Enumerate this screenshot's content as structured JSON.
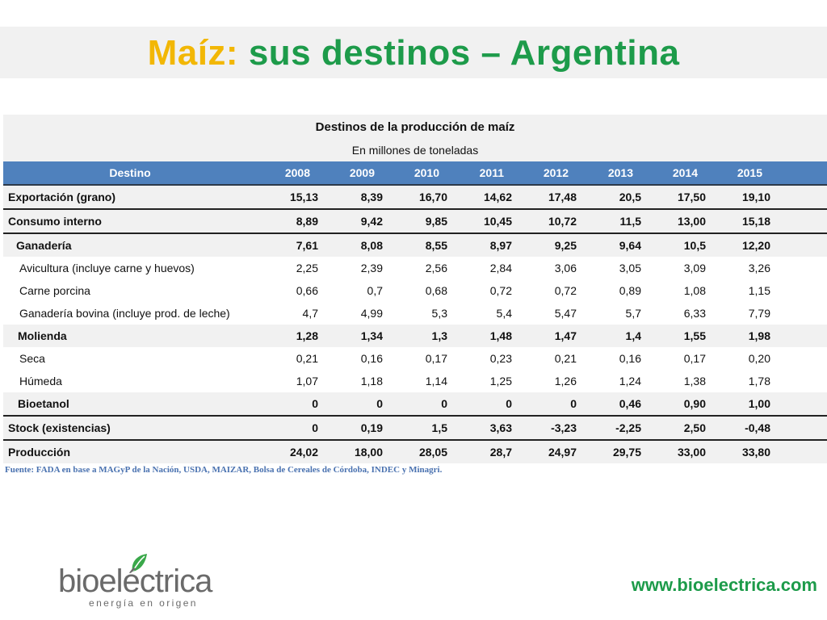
{
  "slide": {
    "title_part1": "Maíz:",
    "title_part2": "sus destinos – Argentina",
    "source": "Fuente: FADA en base a MAGyP de la Nación, USDA, MAIZAR, Bolsa de Cereales de Córdoba, INDEC y Minagri.",
    "logo_word": "bioeléctrica",
    "logo_tagline": "energía en origen",
    "website": "www.bioelectrica.com",
    "colors": {
      "title_yellow": "#f2b705",
      "title_green": "#1d9b4a",
      "header_blue": "#4f81bd",
      "source_blue": "#4a72b0"
    }
  },
  "table": {
    "caption": "Destinos de la producción de maíz",
    "subcaption": "En millones de toneladas",
    "headers": [
      "Destino",
      "2008",
      "2009",
      "2010",
      "2011",
      "2012",
      "2013",
      "2014",
      "2015"
    ],
    "rows": [
      {
        "label": "Exportación (grano)",
        "values": [
          "15,13",
          "8,39",
          "16,70",
          "14,62",
          "17,48",
          "20,5",
          "17,50",
          "19,10"
        ]
      },
      {
        "label": "Consumo interno",
        "values": [
          "8,89",
          "9,42",
          "9,85",
          "10,45",
          "10,72",
          "11,5",
          "13,00",
          "15,18"
        ]
      },
      {
        "label": "Ganadería",
        "values": [
          "7,61",
          "8,08",
          "8,55",
          "8,97",
          "9,25",
          "9,64",
          "10,5",
          "12,20"
        ]
      },
      {
        "label": "Avicultura (incluye carne y huevos)",
        "values": [
          "2,25",
          "2,39",
          "2,56",
          "2,84",
          "3,06",
          "3,05",
          "3,09",
          "3,26"
        ]
      },
      {
        "label": "Carne porcina",
        "values": [
          "0,66",
          "0,7",
          "0,68",
          "0,72",
          "0,72",
          "0,89",
          "1,08",
          "1,15"
        ]
      },
      {
        "label": "Ganadería bovina (incluye prod. de leche)",
        "values": [
          "4,7",
          "4,99",
          "5,3",
          "5,4",
          "5,47",
          "5,7",
          "6,33",
          "7,79"
        ]
      },
      {
        "label": "Molienda",
        "values": [
          "1,28",
          "1,34",
          "1,3",
          "1,48",
          "1,47",
          "1,4",
          "1,55",
          "1,98"
        ]
      },
      {
        "label": "Seca",
        "values": [
          "0,21",
          "0,16",
          "0,17",
          "0,23",
          "0,21",
          "0,16",
          "0,17",
          "0,20"
        ]
      },
      {
        "label": "Húmeda",
        "values": [
          "1,07",
          "1,18",
          "1,14",
          "1,25",
          "1,26",
          "1,24",
          "1,38",
          "1,78"
        ]
      },
      {
        "label": "Bioetanol",
        "values": [
          "0",
          "0",
          "0",
          "0",
          "0",
          "0,46",
          "0,90",
          "1,00"
        ]
      },
      {
        "label": "Stock (existencias)",
        "values": [
          "0",
          "0,19",
          "1,5",
          "3,63",
          "-3,23",
          "-2,25",
          "2,50",
          "-0,48"
        ]
      },
      {
        "label": "Producción",
        "values": [
          "24,02",
          "18,00",
          "28,05",
          "28,7",
          "24,97",
          "29,75",
          "33,00",
          "33,80"
        ]
      }
    ]
  }
}
